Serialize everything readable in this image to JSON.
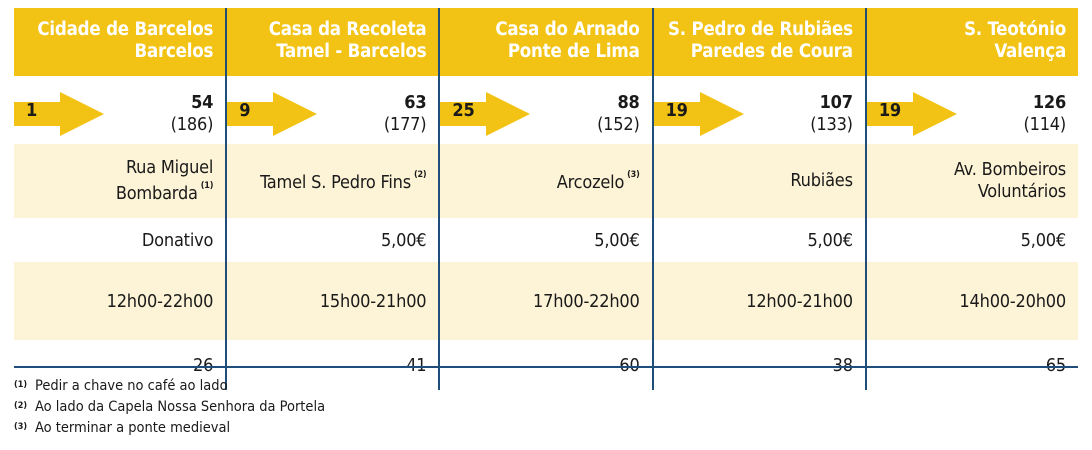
{
  "columns": [
    {
      "name": "Cidade de Barcelos",
      "place": "Barcelos",
      "stage": "1",
      "km": "54",
      "km_remaining": "(186)",
      "address_lines": [
        "Rua Miguel Bombarda"
      ],
      "address_note": "(1)",
      "price": "Donativo",
      "hours": "12h00-22h00",
      "beds": "26"
    },
    {
      "name": "Casa da Recoleta",
      "place": "Tamel - Barcelos",
      "stage": "9",
      "km": "63",
      "km_remaining": "(177)",
      "address_lines": [
        "Tamel S. Pedro Fins"
      ],
      "address_note": "(2)",
      "price": "5,00€",
      "hours": "15h00-21h00",
      "beds": "41"
    },
    {
      "name": "Casa do Arnado",
      "place": "Ponte de Lima",
      "stage": "25",
      "km": "88",
      "km_remaining": "(152)",
      "address_lines": [
        "Arcozelo"
      ],
      "address_note": "(3)",
      "price": "5,00€",
      "hours": "17h00-22h00",
      "beds": "60"
    },
    {
      "name": "S. Pedro de Rubiães",
      "place": "Paredes de Coura",
      "stage": "19",
      "km": "107",
      "km_remaining": "(133)",
      "address_lines": [
        "Rubiães"
      ],
      "address_note": "",
      "price": "5,00€",
      "hours": "12h00-21h00",
      "beds": "38"
    },
    {
      "name": "S. Teotónio",
      "place": "Valença",
      "stage": "19",
      "km": "126",
      "km_remaining": "(114)",
      "address_lines": [
        "Av. Bombeiros",
        "Voluntários"
      ],
      "address_note": "",
      "price": "5,00€",
      "hours": "14h00-20h00",
      "beds": "65"
    }
  ],
  "footnotes": [
    {
      "mark": "(1)",
      "text": "Pedir a chave no café ao lado"
    },
    {
      "mark": "(2)",
      "text": "Ao lado da Capela Nossa Senhora da Portela"
    },
    {
      "mark": "(3)",
      "text": "Ao terminar a ponte medieval"
    }
  ],
  "colors": {
    "header_yellow": "#f2c314",
    "stripe_cream": "#fdf3d6",
    "divider_blue": "#1f4e7a"
  },
  "icons": [
    "arrow-right-icon"
  ]
}
